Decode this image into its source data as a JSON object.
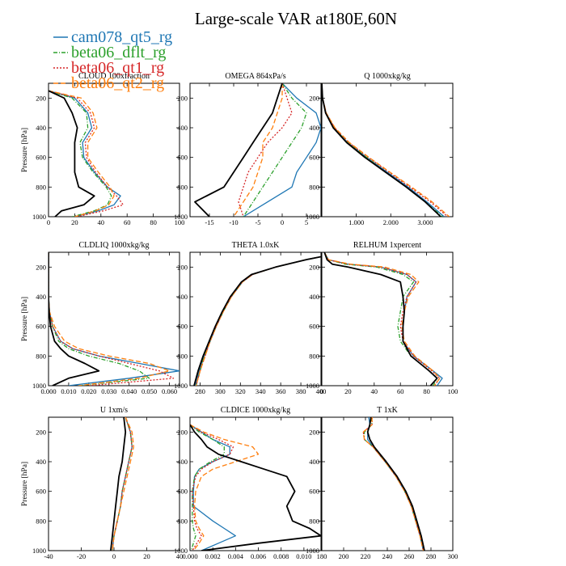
{
  "title": "Large-scale VAR at180E,60N",
  "legend": [
    {
      "label": "cam078_qt5_rg",
      "color": "#1f77b4",
      "dash": ""
    },
    {
      "label": "beta06_dflt_rg",
      "color": "#2ca02c",
      "dash": "5,2,1,2"
    },
    {
      "label": "beta06_qt1_rg",
      "color": "#d62728",
      "dash": "2,2"
    },
    {
      "label": "beta06_qt2_rg",
      "color": "#ff7f0e",
      "dash": "6,3"
    }
  ],
  "reference_color": "#000000",
  "chart_data": [
    {
      "type": "line",
      "title": "CLOUD 100xfraction",
      "ylabel": "Pressure [hPa]",
      "xlim": [
        0,
        100
      ],
      "ylim": [
        1000,
        100
      ],
      "xticks": [
        0,
        20,
        40,
        60,
        80,
        100
      ],
      "xtick_labels": [
        "0",
        "20",
        "40",
        "60",
        "80",
        "100"
      ],
      "yticks": [
        200,
        400,
        600,
        800,
        1000
      ],
      "y": [
        150,
        200,
        300,
        400,
        500,
        600,
        700,
        800,
        860,
        920,
        960,
        1000
      ],
      "series": [
        {
          "name": "cam078_qt5_rg",
          "x": [
            0,
            20,
            30,
            33,
            26,
            27,
            35,
            45,
            55,
            50,
            38,
            20
          ]
        },
        {
          "name": "beta06_dflt_rg",
          "x": [
            0,
            18,
            29,
            30,
            24,
            26,
            34,
            44,
            48,
            45,
            35,
            18
          ]
        },
        {
          "name": "beta06_qt1_rg",
          "x": [
            0,
            22,
            32,
            35,
            28,
            29,
            36,
            45,
            52,
            57,
            42,
            22
          ]
        },
        {
          "name": "beta06_qt2_rg",
          "x": [
            0,
            25,
            34,
            37,
            30,
            30,
            38,
            47,
            50,
            46,
            36,
            20
          ]
        },
        {
          "name": "",
          "x": [
            0,
            12,
            18,
            22,
            20,
            20,
            20,
            23,
            35,
            27,
            10,
            5
          ]
        }
      ]
    },
    {
      "type": "line",
      "title": "OMEGA 864xPa/s",
      "ylabel": "",
      "xlim": [
        -19,
        8
      ],
      "ylim": [
        1000,
        100
      ],
      "xticks": [
        -15,
        -10,
        -5,
        0,
        5
      ],
      "xtick_labels": [
        "-15",
        "-10",
        "-5",
        "0",
        "5"
      ],
      "yticks": [
        200,
        400,
        600,
        800,
        1000
      ],
      "y": [
        100,
        200,
        300,
        400,
        500,
        600,
        700,
        800,
        900,
        1000
      ],
      "series": [
        {
          "name": "cam078_qt5_rg",
          "x": [
            0,
            3,
            7,
            8,
            7,
            5,
            3,
            2,
            -3,
            -8
          ]
        },
        {
          "name": "beta06_dflt_rg",
          "x": [
            0,
            2,
            5,
            4,
            2,
            0,
            -2,
            -4,
            -6,
            -8
          ]
        },
        {
          "name": "beta06_qt1_rg",
          "x": [
            0,
            1,
            2,
            0,
            -3,
            -5,
            -7,
            -8,
            -9,
            -8
          ]
        },
        {
          "name": "beta06_qt2_rg",
          "x": [
            0,
            0,
            -1,
            -2,
            -4,
            -4,
            -5,
            -6,
            -8,
            -10
          ]
        },
        {
          "name": "",
          "x": [
            0,
            -1,
            -2,
            -4,
            -6,
            -8,
            -10,
            -12,
            -18,
            -15
          ]
        }
      ]
    },
    {
      "type": "line",
      "title": "Q 1000xkg/kg",
      "ylabel": "",
      "xlim": [
        0,
        3.8
      ],
      "ylim": [
        1000,
        100
      ],
      "xticks": [
        1,
        2,
        3
      ],
      "xtick_labels": [
        "1.000",
        "2.000",
        "3.000"
      ],
      "yticks": [
        200,
        400,
        600,
        800,
        1000
      ],
      "y": [
        100,
        200,
        300,
        400,
        500,
        600,
        700,
        800,
        900,
        1000
      ],
      "series": [
        {
          "name": "cam078_qt5_rg",
          "x": [
            0,
            0.02,
            0.12,
            0.35,
            0.75,
            1.3,
            1.9,
            2.5,
            3.05,
            3.55
          ]
        },
        {
          "name": "beta06_dflt_rg",
          "x": [
            0,
            0.02,
            0.12,
            0.35,
            0.75,
            1.3,
            1.85,
            2.45,
            3.0,
            3.5
          ]
        },
        {
          "name": "beta06_qt1_rg",
          "x": [
            0,
            0.02,
            0.13,
            0.37,
            0.78,
            1.35,
            1.95,
            2.55,
            3.15,
            3.65
          ]
        },
        {
          "name": "beta06_qt2_rg",
          "x": [
            0,
            0.02,
            0.13,
            0.38,
            0.8,
            1.37,
            1.98,
            2.6,
            3.2,
            3.7
          ]
        },
        {
          "name": "",
          "x": [
            0,
            0.02,
            0.11,
            0.33,
            0.72,
            1.25,
            1.85,
            2.45,
            3.0,
            3.45
          ]
        }
      ]
    },
    {
      "type": "line",
      "title": "CLDLIQ 1000xkg/kg",
      "ylabel": "Pressure [hPa]",
      "xlim": [
        0,
        0.065
      ],
      "ylim": [
        1000,
        100
      ],
      "xticks": [
        0,
        0.01,
        0.02,
        0.03,
        0.04,
        0.05,
        0.06
      ],
      "xtick_labels": [
        "0.000",
        "0.010",
        "0.020",
        "0.030",
        "0.040",
        "0.050",
        "0.060"
      ],
      "yticks": [
        200,
        400,
        600,
        800,
        1000
      ],
      "y": [
        100,
        300,
        400,
        500,
        600,
        700,
        750,
        800,
        850,
        900,
        950,
        1000
      ],
      "series": [
        {
          "name": "cam078_qt5_rg",
          "x": [
            0,
            0,
            0,
            0.0005,
            0.002,
            0.006,
            0.012,
            0.025,
            0.045,
            0.065,
            0.04,
            0.01
          ]
        },
        {
          "name": "beta06_dflt_rg",
          "x": [
            0,
            0,
            0,
            0.0005,
            0.002,
            0.005,
            0.01,
            0.02,
            0.035,
            0.045,
            0.05,
            0.015
          ]
        },
        {
          "name": "beta06_qt1_rg",
          "x": [
            0,
            0,
            0,
            0.0005,
            0.002,
            0.006,
            0.012,
            0.025,
            0.04,
            0.055,
            0.062,
            0.02
          ]
        },
        {
          "name": "beta06_qt2_rg",
          "x": [
            0,
            0,
            0,
            0.0005,
            0.003,
            0.008,
            0.015,
            0.03,
            0.05,
            0.06,
            0.045,
            0.015
          ]
        },
        {
          "name": "",
          "x": [
            0,
            0,
            0,
            0.0003,
            0.001,
            0.003,
            0.006,
            0.01,
            0.018,
            0.025,
            0.01,
            0.002
          ]
        }
      ]
    },
    {
      "type": "line",
      "title": "THETA 1.0xK",
      "ylabel": "",
      "xlim": [
        270,
        400
      ],
      "ylim": [
        1000,
        100
      ],
      "xticks": [
        280,
        300,
        320,
        340,
        360,
        380,
        400
      ],
      "xtick_labels": [
        "280",
        "300",
        "320",
        "340",
        "360",
        "380",
        "400"
      ],
      "yticks": [
        200,
        400,
        600,
        800,
        1000
      ],
      "y": [
        130,
        150,
        200,
        250,
        300,
        400,
        500,
        600,
        700,
        800,
        900,
        1000
      ],
      "series": [
        {
          "name": "cam078_qt5_rg",
          "x": [
            400,
            385,
            355,
            332,
            322,
            311,
            303,
            296,
            290,
            284,
            279,
            275
          ]
        },
        {
          "name": "beta06_dflt_rg",
          "x": [
            400,
            385,
            355,
            332,
            322,
            311,
            303,
            296,
            290,
            284,
            280,
            276
          ]
        },
        {
          "name": "beta06_qt1_rg",
          "x": [
            400,
            385,
            355,
            332,
            322,
            311,
            303,
            296,
            290,
            285,
            280,
            276
          ]
        },
        {
          "name": "beta06_qt2_rg",
          "x": [
            400,
            385,
            355,
            332,
            322,
            311,
            303,
            296,
            290,
            285,
            280,
            276
          ]
        },
        {
          "name": "",
          "x": [
            400,
            385,
            355,
            331,
            321,
            310,
            302,
            295,
            289,
            283,
            278,
            274
          ]
        }
      ]
    },
    {
      "type": "line",
      "title": "RELHUM 1xpercent",
      "ylabel": "",
      "xlim": [
        0,
        100
      ],
      "ylim": [
        1000,
        100
      ],
      "xticks": [
        0,
        20,
        40,
        60,
        80,
        100
      ],
      "xtick_labels": [
        "0",
        "20",
        "40",
        "60",
        "80",
        "100"
      ],
      "yticks": [
        200,
        400,
        600,
        800,
        1000
      ],
      "y": [
        100,
        150,
        180,
        200,
        250,
        300,
        400,
        500,
        600,
        700,
        800,
        900,
        950,
        1000
      ],
      "series": [
        {
          "name": "cam078_qt5_rg",
          "x": [
            2,
            5,
            20,
            45,
            65,
            72,
            65,
            63,
            62,
            62,
            70,
            85,
            92,
            88
          ]
        },
        {
          "name": "beta06_dflt_rg",
          "x": [
            2,
            5,
            18,
            42,
            62,
            70,
            62,
            60,
            58,
            60,
            68,
            82,
            88,
            85
          ]
        },
        {
          "name": "beta06_qt1_rg",
          "x": [
            2,
            5,
            20,
            45,
            65,
            72,
            65,
            62,
            60,
            62,
            70,
            84,
            90,
            86
          ]
        },
        {
          "name": "beta06_qt2_rg",
          "x": [
            2,
            5,
            22,
            48,
            68,
            74,
            66,
            63,
            61,
            63,
            71,
            85,
            90,
            86
          ]
        },
        {
          "name": "",
          "x": [
            2,
            4,
            8,
            20,
            45,
            60,
            62,
            63,
            62,
            62,
            68,
            82,
            88,
            83
          ]
        }
      ]
    },
    {
      "type": "line",
      "title": "U 1xm/s",
      "ylabel": "Pressure [hPa]",
      "xlim": [
        -40,
        40
      ],
      "ylim": [
        1000,
        100
      ],
      "xticks": [
        -40,
        -20,
        0,
        20,
        40
      ],
      "xtick_labels": [
        "-40",
        "-20",
        "0",
        "20",
        "40"
      ],
      "yticks": [
        200,
        400,
        600,
        800,
        1000
      ],
      "y": [
        100,
        200,
        300,
        400,
        500,
        600,
        700,
        800,
        900,
        1000
      ],
      "series": [
        {
          "name": "cam078_qt5_rg",
          "x": [
            7,
            10,
            11,
            9,
            7,
            5,
            4,
            2,
            0,
            -1
          ]
        },
        {
          "name": "beta06_dflt_rg",
          "x": [
            7,
            10,
            11,
            9,
            7,
            5,
            4,
            2,
            0,
            -1
          ]
        },
        {
          "name": "beta06_qt1_rg",
          "x": [
            7,
            10,
            11,
            9,
            7,
            5,
            4,
            2,
            0,
            -1
          ]
        },
        {
          "name": "beta06_qt2_rg",
          "x": [
            7,
            11,
            12,
            10,
            8,
            6,
            4,
            2,
            0,
            -1
          ]
        },
        {
          "name": "",
          "x": [
            6,
            7,
            6,
            5,
            3,
            2,
            1,
            0,
            -1,
            -2
          ]
        }
      ]
    },
    {
      "type": "line",
      "title": "CLDICE 1000xkg/kg",
      "ylabel": "",
      "xlim": [
        0,
        0.0115
      ],
      "ylim": [
        1000,
        100
      ],
      "xticks": [
        0,
        0.002,
        0.004,
        0.006,
        0.008,
        0.01
      ],
      "xtick_labels": [
        "0.000",
        "0.002",
        "0.004",
        "0.006",
        "0.008",
        "0.010"
      ],
      "yticks": [
        200,
        400,
        600,
        800,
        1000
      ],
      "y": [
        150,
        200,
        250,
        300,
        350,
        400,
        450,
        500,
        600,
        700,
        800,
        850,
        900,
        950,
        1000
      ],
      "series": [
        {
          "name": "cam078_qt5_rg",
          "x": [
            0,
            0.001,
            0.002,
            0.0035,
            0.0035,
            0.002,
            0.0008,
            0.0004,
            0.0003,
            0.0003,
            0.002,
            0.003,
            0.004,
            0.0025,
            0.001
          ]
        },
        {
          "name": "beta06_dflt_rg",
          "x": [
            0,
            0.0008,
            0.002,
            0.003,
            0.003,
            0.0018,
            0.0008,
            0.0004,
            0.0002,
            0.0002,
            0.0002,
            0.0003,
            0.0005,
            0.0003,
            0.0001
          ]
        },
        {
          "name": "beta06_qt1_rg",
          "x": [
            0,
            0.001,
            0.0025,
            0.0038,
            0.0035,
            0.002,
            0.001,
            0.0005,
            0.0002,
            0.0003,
            0.0004,
            0.0006,
            0.001,
            0.0006,
            0.0002
          ]
        },
        {
          "name": "beta06_qt2_rg",
          "x": [
            0,
            0.0012,
            0.003,
            0.0055,
            0.006,
            0.004,
            0.002,
            0.001,
            0.0005,
            0.0004,
            0.0005,
            0.0008,
            0.0012,
            0.0008,
            0.0003
          ]
        },
        {
          "name": "",
          "x": [
            0,
            0.0004,
            0.001,
            0.0015,
            0.0025,
            0.0045,
            0.0065,
            0.0085,
            0.0092,
            0.0085,
            0.009,
            0.0105,
            0.0115,
            0.006,
            0.001
          ]
        }
      ]
    },
    {
      "type": "line",
      "title": "T 1xK",
      "ylabel": "",
      "xlim": [
        180,
        300
      ],
      "ylim": [
        1000,
        100
      ],
      "xticks": [
        180,
        200,
        220,
        240,
        260,
        280,
        300
      ],
      "xtick_labels": [
        "180",
        "200",
        "220",
        "240",
        "260",
        "280",
        "300"
      ],
      "yticks": [
        200,
        400,
        600,
        800,
        1000
      ],
      "y": [
        100,
        150,
        200,
        250,
        300,
        400,
        500,
        600,
        700,
        800,
        900,
        1000
      ],
      "series": [
        {
          "name": "cam078_qt5_rg",
          "x": [
            223,
            224,
            222,
            222,
            227,
            238,
            248,
            256,
            262,
            266,
            270,
            273
          ]
        },
        {
          "name": "beta06_dflt_rg",
          "x": [
            225,
            226,
            219,
            219,
            227,
            238,
            248,
            256,
            262,
            266,
            270,
            273
          ]
        },
        {
          "name": "beta06_qt1_rg",
          "x": [
            226,
            226,
            218,
            219,
            227,
            238,
            248,
            256,
            262,
            266,
            270,
            273
          ]
        },
        {
          "name": "beta06_qt2_rg",
          "x": [
            226,
            226,
            218,
            219,
            227,
            238,
            248,
            256,
            262,
            266,
            270,
            273
          ]
        },
        {
          "name": "",
          "x": [
            225,
            224,
            222,
            224,
            228,
            239,
            249,
            257,
            263,
            267,
            271,
            274
          ]
        }
      ]
    }
  ]
}
